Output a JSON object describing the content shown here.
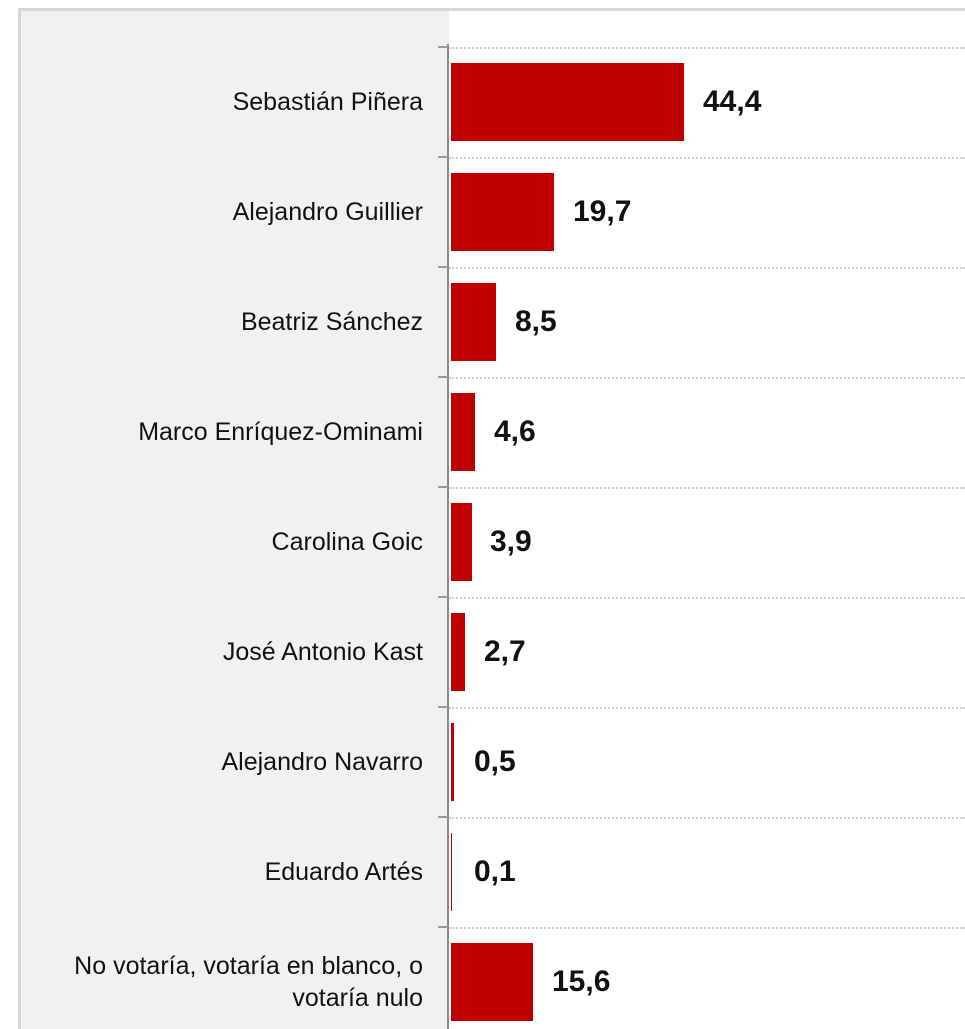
{
  "chart_data": {
    "type": "bar",
    "orientation": "horizontal",
    "categories": [
      "Sebastián Piñera",
      "Alejandro Guillier",
      "Beatriz Sánchez",
      "Marco Enríquez-Ominami",
      "Carolina Goic",
      "José Antonio Kast",
      "Alejandro Navarro",
      "Eduardo Artés",
      "No votaría, votaría en blanco, o votaría nulo"
    ],
    "values": [
      44.4,
      19.7,
      8.5,
      4.6,
      3.9,
      2.7,
      0.5,
      0.1,
      15.6
    ],
    "value_labels": [
      "44,4",
      "19,7",
      "8,5",
      "4,6",
      "3,9",
      "2,7",
      "0,5",
      "0,1",
      "15,6"
    ],
    "bar_color": "#c00000",
    "label_panel_color": "#f1f1f1",
    "grid": true,
    "legend": "none",
    "xlim": [
      0,
      100
    ]
  }
}
